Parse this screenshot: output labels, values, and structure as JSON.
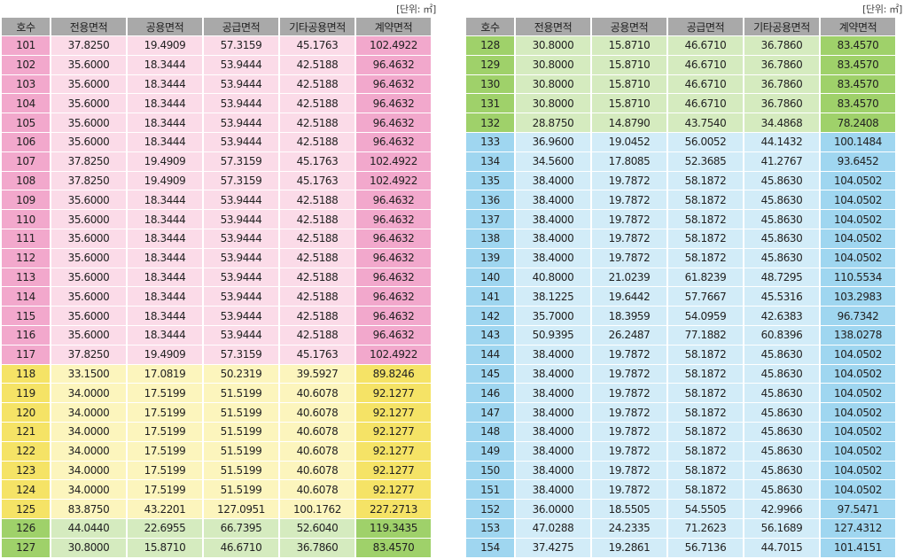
{
  "unit_label": "[단위: ㎡]",
  "headers": [
    "호수",
    "전용면적",
    "공용면적",
    "공급면적",
    "기타공용면적",
    "계약면적"
  ],
  "colors": {
    "pink": "#f2a8cc",
    "yellow": "#f5e366",
    "green": "#9fd16a",
    "blue": "#9fd6f0",
    "header": "#a9a9a9"
  },
  "left_table": [
    {
      "group": "pink",
      "cells": [
        "101",
        "37.8250",
        "19.4909",
        "57.3159",
        "45.1763",
        "102.4922"
      ]
    },
    {
      "group": "pink",
      "cells": [
        "102",
        "35.6000",
        "18.3444",
        "53.9444",
        "42.5188",
        "96.4632"
      ]
    },
    {
      "group": "pink",
      "cells": [
        "103",
        "35.6000",
        "18.3444",
        "53.9444",
        "42.5188",
        "96.4632"
      ]
    },
    {
      "group": "pink",
      "cells": [
        "104",
        "35.6000",
        "18.3444",
        "53.9444",
        "42.5188",
        "96.4632"
      ]
    },
    {
      "group": "pink",
      "cells": [
        "105",
        "35.6000",
        "18.3444",
        "53.9444",
        "42.5188",
        "96.4632"
      ]
    },
    {
      "group": "pink",
      "cells": [
        "106",
        "35.6000",
        "18.3444",
        "53.9444",
        "42.5188",
        "96.4632"
      ]
    },
    {
      "group": "pink",
      "cells": [
        "107",
        "37.8250",
        "19.4909",
        "57.3159",
        "45.1763",
        "102.4922"
      ]
    },
    {
      "group": "pink",
      "cells": [
        "108",
        "37.8250",
        "19.4909",
        "57.3159",
        "45.1763",
        "102.4922"
      ]
    },
    {
      "group": "pink",
      "cells": [
        "109",
        "35.6000",
        "18.3444",
        "53.9444",
        "42.5188",
        "96.4632"
      ]
    },
    {
      "group": "pink",
      "cells": [
        "110",
        "35.6000",
        "18.3444",
        "53.9444",
        "42.5188",
        "96.4632"
      ]
    },
    {
      "group": "pink",
      "cells": [
        "111",
        "35.6000",
        "18.3444",
        "53.9444",
        "42.5188",
        "96.4632"
      ]
    },
    {
      "group": "pink",
      "cells": [
        "112",
        "35.6000",
        "18.3444",
        "53.9444",
        "42.5188",
        "96.4632"
      ]
    },
    {
      "group": "pink",
      "cells": [
        "113",
        "35.6000",
        "18.3444",
        "53.9444",
        "42.5188",
        "96.4632"
      ]
    },
    {
      "group": "pink",
      "cells": [
        "114",
        "35.6000",
        "18.3444",
        "53.9444",
        "42.5188",
        "96.4632"
      ]
    },
    {
      "group": "pink",
      "cells": [
        "115",
        "35.6000",
        "18.3444",
        "53.9444",
        "42.5188",
        "96.4632"
      ]
    },
    {
      "group": "pink",
      "cells": [
        "116",
        "35.6000",
        "18.3444",
        "53.9444",
        "42.5188",
        "96.4632"
      ]
    },
    {
      "group": "pink",
      "cells": [
        "117",
        "37.8250",
        "19.4909",
        "57.3159",
        "45.1763",
        "102.4922"
      ]
    },
    {
      "group": "yellow",
      "cells": [
        "118",
        "33.1500",
        "17.0819",
        "50.2319",
        "39.5927",
        "89.8246"
      ]
    },
    {
      "group": "yellow",
      "cells": [
        "119",
        "34.0000",
        "17.5199",
        "51.5199",
        "40.6078",
        "92.1277"
      ]
    },
    {
      "group": "yellow",
      "cells": [
        "120",
        "34.0000",
        "17.5199",
        "51.5199",
        "40.6078",
        "92.1277"
      ]
    },
    {
      "group": "yellow",
      "cells": [
        "121",
        "34.0000",
        "17.5199",
        "51.5199",
        "40.6078",
        "92.1277"
      ]
    },
    {
      "group": "yellow",
      "cells": [
        "122",
        "34.0000",
        "17.5199",
        "51.5199",
        "40.6078",
        "92.1277"
      ]
    },
    {
      "group": "yellow",
      "cells": [
        "123",
        "34.0000",
        "17.5199",
        "51.5199",
        "40.6078",
        "92.1277"
      ]
    },
    {
      "group": "yellow",
      "cells": [
        "124",
        "34.0000",
        "17.5199",
        "51.5199",
        "40.6078",
        "92.1277"
      ]
    },
    {
      "group": "yellow",
      "cells": [
        "125",
        "83.8750",
        "43.2201",
        "127.0951",
        "100.1762",
        "227.2713"
      ]
    },
    {
      "group": "green",
      "cells": [
        "126",
        "44.0440",
        "22.6955",
        "66.7395",
        "52.6040",
        "119.3435"
      ]
    },
    {
      "group": "green",
      "cells": [
        "127",
        "30.8000",
        "15.8710",
        "46.6710",
        "36.7860",
        "83.4570"
      ]
    }
  ],
  "right_table": [
    {
      "group": "green",
      "cells": [
        "128",
        "30.8000",
        "15.8710",
        "46.6710",
        "36.7860",
        "83.4570"
      ]
    },
    {
      "group": "green",
      "cells": [
        "129",
        "30.8000",
        "15.8710",
        "46.6710",
        "36.7860",
        "83.4570"
      ]
    },
    {
      "group": "green",
      "cells": [
        "130",
        "30.8000",
        "15.8710",
        "46.6710",
        "36.7860",
        "83.4570"
      ]
    },
    {
      "group": "green",
      "cells": [
        "131",
        "30.8000",
        "15.8710",
        "46.6710",
        "36.7860",
        "83.4570"
      ]
    },
    {
      "group": "green",
      "cells": [
        "132",
        "28.8750",
        "14.8790",
        "43.7540",
        "34.4868",
        "78.2408"
      ]
    },
    {
      "group": "blue",
      "cells": [
        "133",
        "36.9600",
        "19.0452",
        "56.0052",
        "44.1432",
        "100.1484"
      ]
    },
    {
      "group": "blue",
      "cells": [
        "134",
        "34.5600",
        "17.8085",
        "52.3685",
        "41.2767",
        "93.6452"
      ]
    },
    {
      "group": "blue",
      "cells": [
        "135",
        "38.4000",
        "19.7872",
        "58.1872",
        "45.8630",
        "104.0502"
      ]
    },
    {
      "group": "blue",
      "cells": [
        "136",
        "38.4000",
        "19.7872",
        "58.1872",
        "45.8630",
        "104.0502"
      ]
    },
    {
      "group": "blue",
      "cells": [
        "137",
        "38.4000",
        "19.7872",
        "58.1872",
        "45.8630",
        "104.0502"
      ]
    },
    {
      "group": "blue",
      "cells": [
        "138",
        "38.4000",
        "19.7872",
        "58.1872",
        "45.8630",
        "104.0502"
      ]
    },
    {
      "group": "blue",
      "cells": [
        "139",
        "38.4000",
        "19.7872",
        "58.1872",
        "45.8630",
        "104.0502"
      ]
    },
    {
      "group": "blue",
      "cells": [
        "140",
        "40.8000",
        "21.0239",
        "61.8239",
        "48.7295",
        "110.5534"
      ]
    },
    {
      "group": "blue",
      "cells": [
        "141",
        "38.1225",
        "19.6442",
        "57.7667",
        "45.5316",
        "103.2983"
      ]
    },
    {
      "group": "blue",
      "cells": [
        "142",
        "35.7000",
        "18.3959",
        "54.0959",
        "42.6383",
        "96.7342"
      ]
    },
    {
      "group": "blue",
      "cells": [
        "143",
        "50.9395",
        "26.2487",
        "77.1882",
        "60.8396",
        "138.0278"
      ]
    },
    {
      "group": "blue",
      "cells": [
        "144",
        "38.4000",
        "19.7872",
        "58.1872",
        "45.8630",
        "104.0502"
      ]
    },
    {
      "group": "blue",
      "cells": [
        "145",
        "38.4000",
        "19.7872",
        "58.1872",
        "45.8630",
        "104.0502"
      ]
    },
    {
      "group": "blue",
      "cells": [
        "146",
        "38.4000",
        "19.7872",
        "58.1872",
        "45.8630",
        "104.0502"
      ]
    },
    {
      "group": "blue",
      "cells": [
        "147",
        "38.4000",
        "19.7872",
        "58.1872",
        "45.8630",
        "104.0502"
      ]
    },
    {
      "group": "blue",
      "cells": [
        "148",
        "38.4000",
        "19.7872",
        "58.1872",
        "45.8630",
        "104.0502"
      ]
    },
    {
      "group": "blue",
      "cells": [
        "149",
        "38.4000",
        "19.7872",
        "58.1872",
        "45.8630",
        "104.0502"
      ]
    },
    {
      "group": "blue",
      "cells": [
        "150",
        "38.4000",
        "19.7872",
        "58.1872",
        "45.8630",
        "104.0502"
      ]
    },
    {
      "group": "blue",
      "cells": [
        "151",
        "38.4000",
        "19.7872",
        "58.1872",
        "45.8630",
        "104.0502"
      ]
    },
    {
      "group": "blue",
      "cells": [
        "152",
        "36.0000",
        "18.5505",
        "54.5505",
        "42.9966",
        "97.5471"
      ]
    },
    {
      "group": "blue",
      "cells": [
        "153",
        "47.0288",
        "24.2335",
        "71.2623",
        "56.1689",
        "127.4312"
      ]
    },
    {
      "group": "blue",
      "cells": [
        "154",
        "37.4275",
        "19.2861",
        "56.7136",
        "44.7015",
        "101.4151"
      ]
    }
  ]
}
